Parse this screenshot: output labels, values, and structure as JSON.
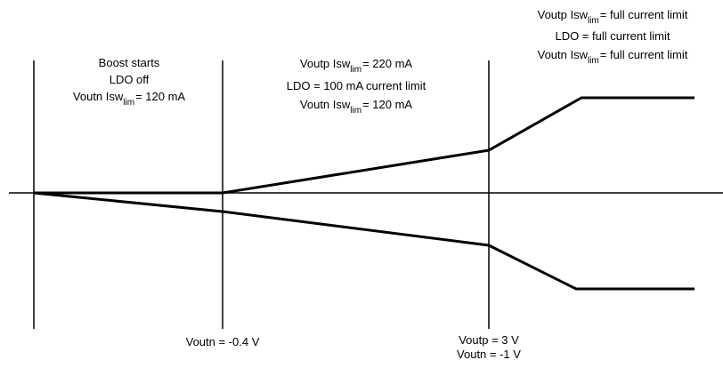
{
  "regions": [
    {
      "lines": [
        {
          "text": "Boost starts"
        },
        {
          "text": "LDO off"
        },
        {
          "text": "Voutn Isw",
          "sub": "lim",
          "after": "= 120 mA"
        }
      ]
    },
    {
      "lines": [
        {
          "text": "Voutp Isw",
          "sub": "lim",
          "after": "= 220 mA"
        },
        {
          "text": "LDO = 100 mA current limit"
        },
        {
          "text": "Voutn Isw",
          "sub": "lim",
          "after": "= 120 mA"
        }
      ]
    },
    {
      "lines": [
        {
          "text": "Voutp Isw",
          "sub": "lim",
          "after": "= full current limit"
        },
        {
          "text": "LDO = full current limit"
        },
        {
          "text": "Voutn Isw",
          "sub": "lim",
          "after": "= full current limit"
        }
      ]
    }
  ],
  "markers": [
    {
      "lines": [
        "Voutn = -0.4 V"
      ]
    },
    {
      "lines": [
        "Voutp = 3 V",
        "Voutn = -1 V"
      ]
    }
  ]
}
